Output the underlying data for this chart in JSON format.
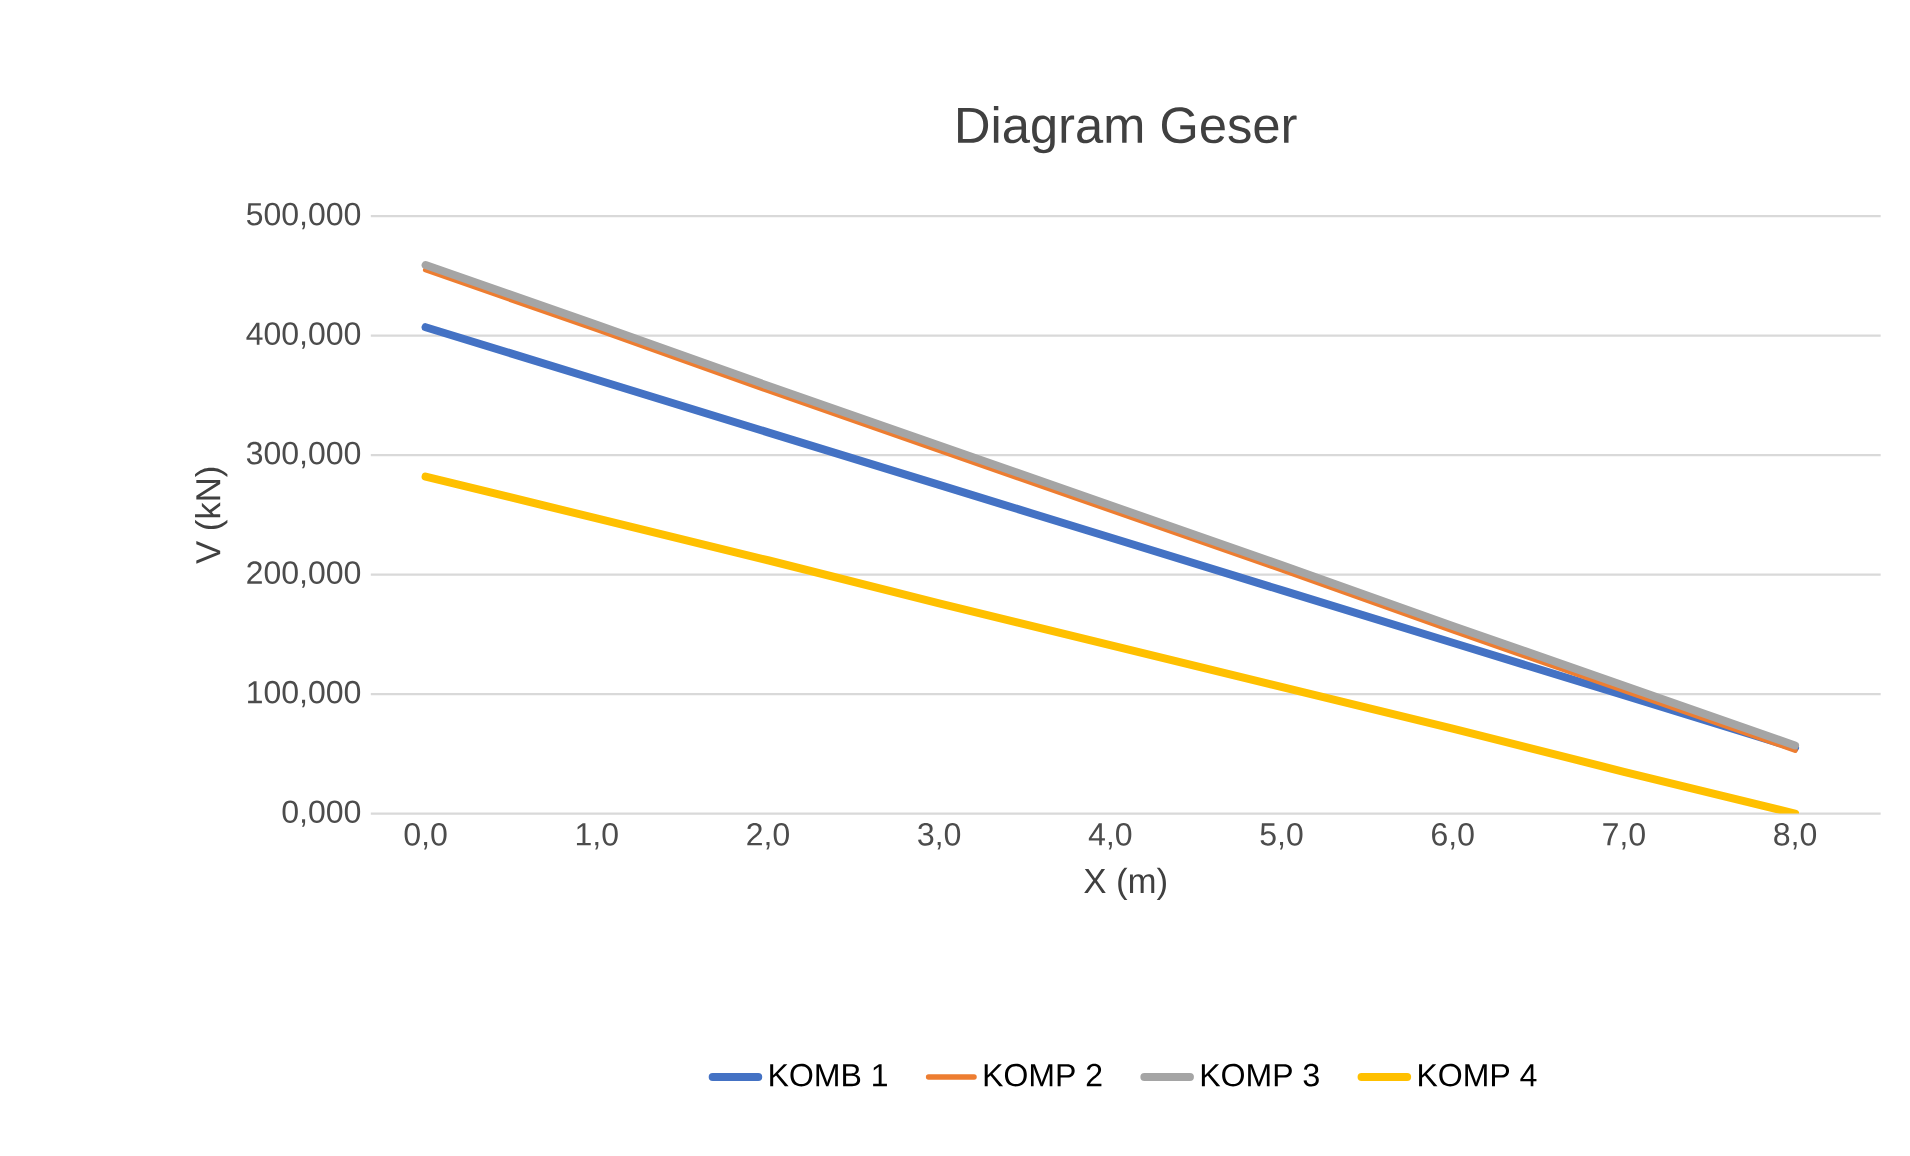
{
  "chart_data": {
    "type": "line",
    "title": "Diagram Geser",
    "xlabel": "X (m)",
    "ylabel": "V (kN)",
    "categories": [
      "0,0",
      "1,0",
      "2,0",
      "3,0",
      "4,0",
      "5,0",
      "6,0",
      "7,0",
      "8,0"
    ],
    "series": [
      {
        "name": "KOMB 1",
        "color": "#4472c4",
        "values": [
          407,
          363,
          319,
          275,
          231,
          187,
          143,
          99,
          55
        ]
      },
      {
        "name": "KOMP 2",
        "color": "#ed7d31",
        "values": [
          455,
          405,
          354,
          304,
          254,
          204,
          153,
          103,
          53
        ]
      },
      {
        "name": "KOMP 3",
        "color": "#a5a5a5",
        "values": [
          459,
          409,
          358,
          308,
          258,
          208,
          157,
          107,
          57
        ]
      },
      {
        "name": "KOMP 4",
        "color": "#ffc000",
        "values": [
          282,
          247,
          212,
          176,
          141,
          106,
          71,
          35,
          0
        ]
      }
    ],
    "ylim": [
      0,
      500
    ],
    "yticks": [
      {
        "value": 0,
        "label": "0,000"
      },
      {
        "value": 100,
        "label": "100,000"
      },
      {
        "value": 200,
        "label": "200,000"
      },
      {
        "value": 300,
        "label": "300,000"
      },
      {
        "value": 400,
        "label": "400,000"
      },
      {
        "value": 500,
        "label": "500,000"
      }
    ],
    "grid": "y",
    "legend": "bottom",
    "marker": "none",
    "line_style": "solid"
  }
}
